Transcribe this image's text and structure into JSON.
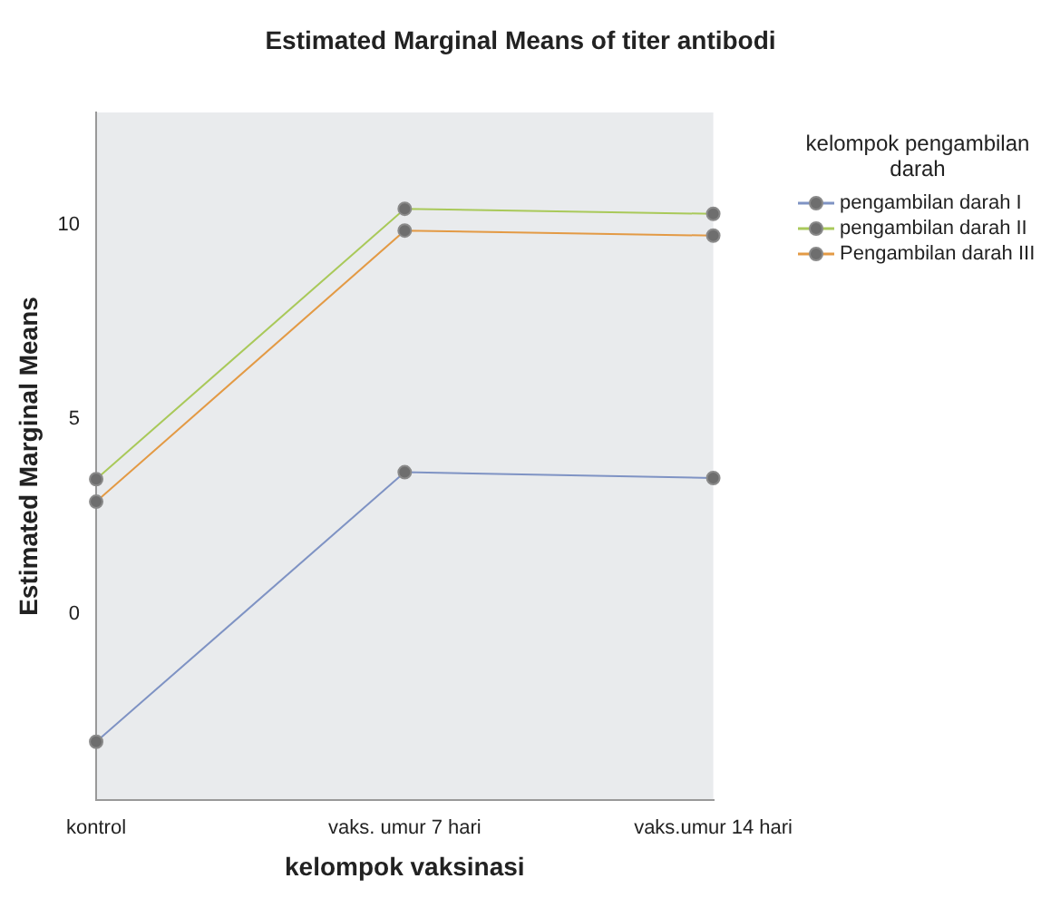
{
  "chart_data": {
    "type": "line",
    "title": "Estimated Marginal Means of titer antibodi",
    "xlabel": "kelompok vaksinasi",
    "ylabel": "Estimated Marginal Means",
    "legend_title": "kelompok pengambilan darah",
    "categories": [
      "kontrol",
      "vaks. umur 7 hari",
      "vaks.umur 14 hari"
    ],
    "series": [
      {
        "name": "pengambilan darah I",
        "color": "#7f93c4",
        "values": [
          -3.3,
          3.64,
          3.49
        ]
      },
      {
        "name": "pengambilan darah II",
        "color": "#a9c95a",
        "values": [
          3.46,
          10.42,
          10.29
        ]
      },
      {
        "name": "Pengambilan darah III",
        "color": "#e39a45",
        "values": [
          2.88,
          9.86,
          9.73
        ]
      }
    ],
    "ylim": [
      -4.8,
      12.9
    ],
    "yticks": [
      0,
      5,
      10
    ],
    "grid": false,
    "legend": "right",
    "marker": "circle",
    "line_style": "solid"
  }
}
